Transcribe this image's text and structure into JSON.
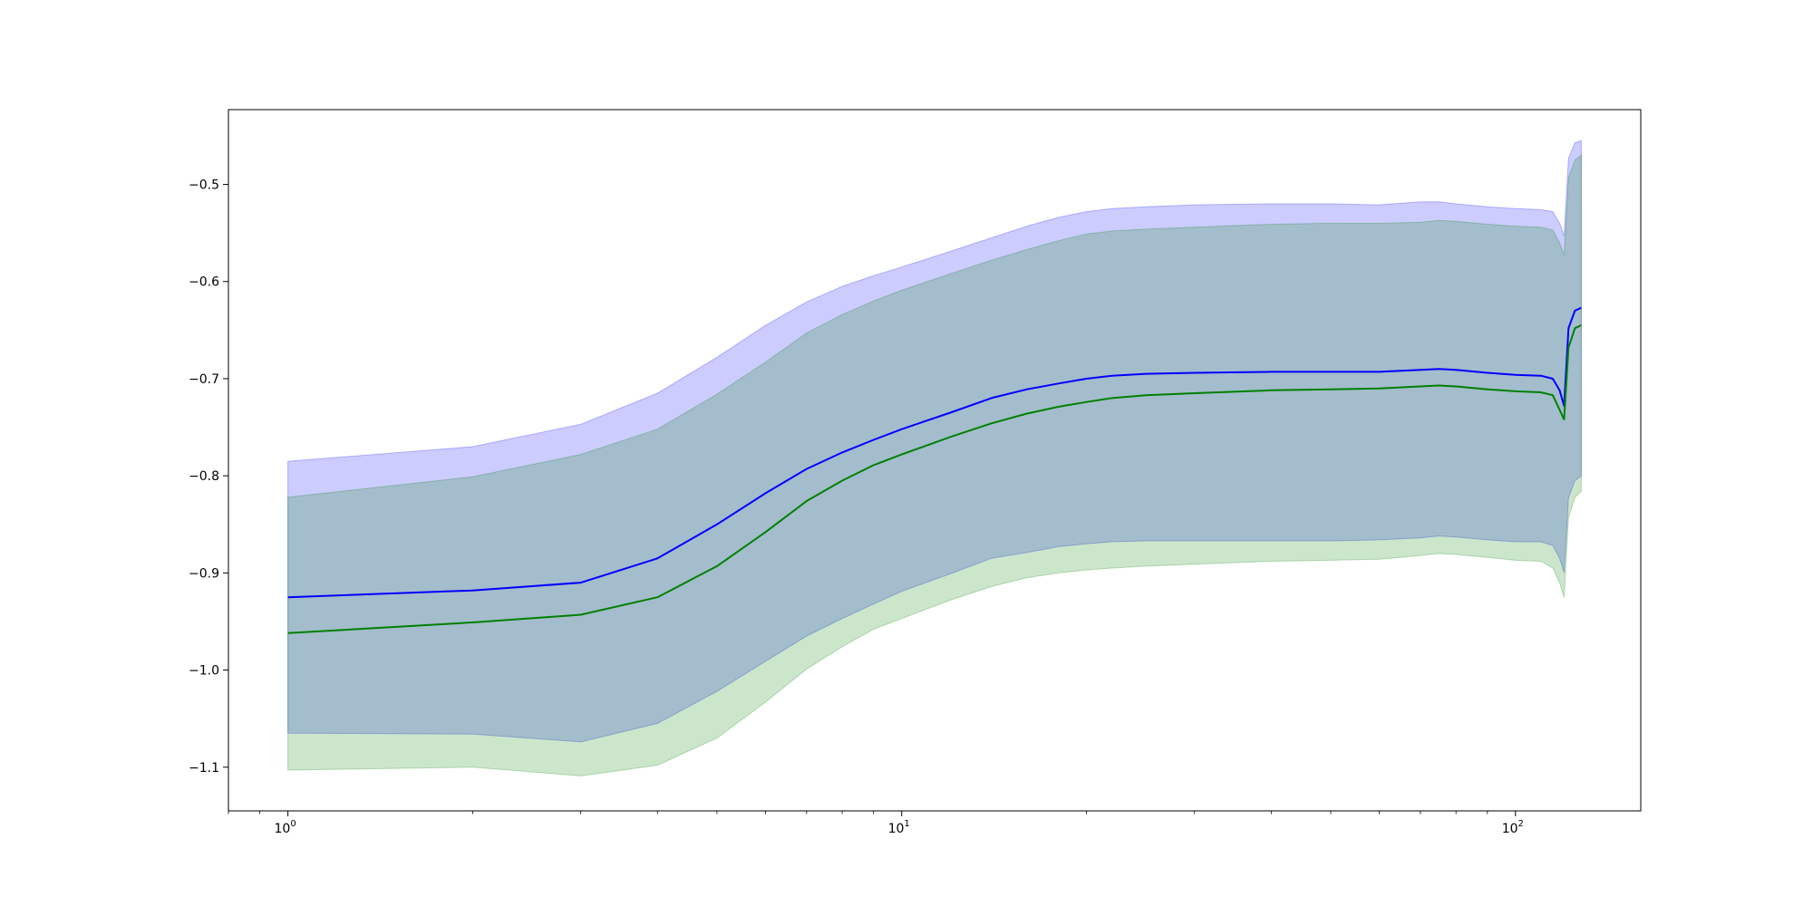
{
  "chart_data": {
    "type": "line",
    "title": "",
    "xlabel": "",
    "ylabel": "",
    "xscale": "log",
    "xlim": [
      0.8,
      160
    ],
    "ylim": [
      -1.145,
      -0.423
    ],
    "grid": false,
    "legend": "none",
    "x_ticks": [
      {
        "value": 1,
        "base": "10",
        "exp": "0"
      },
      {
        "value": 10,
        "base": "10",
        "exp": "1"
      },
      {
        "value": 100,
        "base": "10",
        "exp": "2"
      }
    ],
    "y_ticks": [
      {
        "value": -0.5,
        "label": "−0.5"
      },
      {
        "value": -0.6,
        "label": "−0.6"
      },
      {
        "value": -0.7,
        "label": "−0.7"
      },
      {
        "value": -0.8,
        "label": "−0.8"
      },
      {
        "value": -0.9,
        "label": "−0.9"
      },
      {
        "value": -1.0,
        "label": "−1.0"
      },
      {
        "value": -1.1,
        "label": "−1.1"
      }
    ],
    "series": [
      {
        "color": "#0000ff",
        "band_color": "#0000ff",
        "band_opacity": 0.2,
        "x": [
          1,
          2,
          3,
          4,
          5,
          6,
          7,
          8,
          9,
          10,
          12,
          14,
          16,
          18,
          20,
          22,
          25,
          30,
          40,
          50,
          60,
          70,
          75,
          80,
          90,
          100,
          110,
          115,
          118,
          120,
          122,
          125,
          128
        ],
        "mean": [
          -0.925,
          -0.918,
          -0.91,
          -0.885,
          -0.85,
          -0.818,
          -0.793,
          -0.776,
          -0.763,
          -0.752,
          -0.735,
          -0.72,
          -0.711,
          -0.705,
          -0.7,
          -0.697,
          -0.695,
          -0.694,
          -0.693,
          -0.693,
          -0.693,
          -0.691,
          -0.69,
          -0.691,
          -0.694,
          -0.696,
          -0.697,
          -0.7,
          -0.712,
          -0.728,
          -0.648,
          -0.63,
          -0.627
        ],
        "upper": [
          -0.785,
          -0.77,
          -0.747,
          -0.715,
          -0.678,
          -0.645,
          -0.621,
          -0.605,
          -0.594,
          -0.585,
          -0.569,
          -0.555,
          -0.543,
          -0.534,
          -0.528,
          -0.525,
          -0.523,
          -0.521,
          -0.52,
          -0.52,
          -0.521,
          -0.518,
          -0.518,
          -0.52,
          -0.523,
          -0.525,
          -0.526,
          -0.528,
          -0.54,
          -0.553,
          -0.473,
          -0.457,
          -0.455
        ],
        "lower": [
          -1.065,
          -1.066,
          -1.074,
          -1.055,
          -1.022,
          -0.991,
          -0.965,
          -0.947,
          -0.932,
          -0.919,
          -0.901,
          -0.885,
          -0.879,
          -0.873,
          -0.87,
          -0.868,
          -0.867,
          -0.867,
          -0.867,
          -0.867,
          -0.866,
          -0.864,
          -0.862,
          -0.863,
          -0.866,
          -0.868,
          -0.868,
          -0.872,
          -0.885,
          -0.9,
          -0.823,
          -0.805,
          -0.8
        ]
      },
      {
        "color": "#008000",
        "band_color": "#008000",
        "band_opacity": 0.2,
        "x": [
          1,
          2,
          3,
          4,
          5,
          6,
          7,
          8,
          9,
          10,
          12,
          14,
          16,
          18,
          20,
          22,
          25,
          30,
          40,
          50,
          60,
          70,
          75,
          80,
          90,
          100,
          110,
          115,
          118,
          120,
          122,
          125,
          128
        ],
        "mean": [
          -0.962,
          -0.951,
          -0.943,
          -0.925,
          -0.893,
          -0.858,
          -0.826,
          -0.805,
          -0.789,
          -0.778,
          -0.76,
          -0.746,
          -0.736,
          -0.729,
          -0.724,
          -0.72,
          -0.717,
          -0.715,
          -0.712,
          -0.711,
          -0.71,
          -0.708,
          -0.707,
          -0.708,
          -0.711,
          -0.713,
          -0.714,
          -0.717,
          -0.732,
          -0.742,
          -0.668,
          -0.648,
          -0.645
        ],
        "upper": [
          -0.822,
          -0.801,
          -0.778,
          -0.752,
          -0.716,
          -0.683,
          -0.653,
          -0.634,
          -0.62,
          -0.609,
          -0.592,
          -0.578,
          -0.567,
          -0.558,
          -0.551,
          -0.548,
          -0.546,
          -0.544,
          -0.541,
          -0.54,
          -0.54,
          -0.539,
          -0.537,
          -0.538,
          -0.541,
          -0.543,
          -0.544,
          -0.547,
          -0.56,
          -0.573,
          -0.493,
          -0.475,
          -0.47
        ],
        "lower": [
          -1.103,
          -1.1,
          -1.109,
          -1.098,
          -1.07,
          -1.033,
          -0.999,
          -0.976,
          -0.958,
          -0.947,
          -0.928,
          -0.914,
          -0.905,
          -0.9,
          -0.897,
          -0.895,
          -0.893,
          -0.891,
          -0.888,
          -0.887,
          -0.886,
          -0.882,
          -0.88,
          -0.881,
          -0.884,
          -0.887,
          -0.888,
          -0.895,
          -0.91,
          -0.925,
          -0.843,
          -0.822,
          -0.816
        ]
      }
    ]
  }
}
